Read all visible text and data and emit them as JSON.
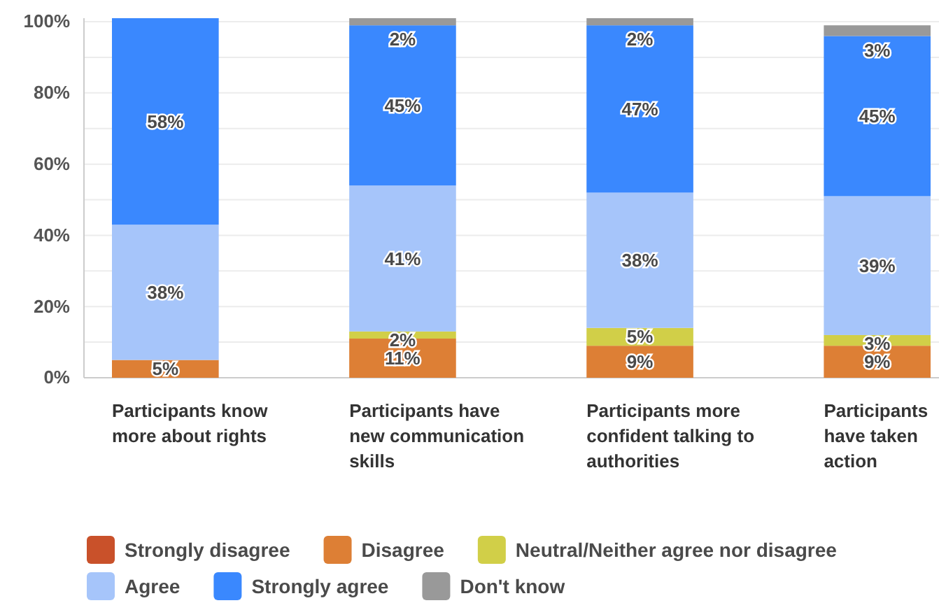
{
  "chart_data": {
    "type": "bar",
    "stacked": true,
    "categories": [
      "Participants know more about rights",
      "Participants have new communication skills",
      "Participants more confident talking to authorities",
      "Participants have taken action"
    ],
    "series": [
      {
        "name": "Strongly disagree",
        "color": "#c9512a",
        "values": [
          null,
          null,
          null,
          null
        ],
        "value_labels": [
          null,
          null,
          null,
          null
        ]
      },
      {
        "name": "Disagree",
        "color": "#dd7f35",
        "values": [
          5,
          11,
          9,
          9
        ],
        "value_labels": [
          "5%",
          "11%",
          "9%",
          "9%"
        ]
      },
      {
        "name": "Neutral/Neither agree nor disagree",
        "color": "#d1cf48",
        "values": [
          null,
          2,
          5,
          3
        ],
        "value_labels": [
          null,
          "2%",
          "5%",
          "3%"
        ]
      },
      {
        "name": "Agree",
        "color": "#a6c5fa",
        "values": [
          38,
          41,
          38,
          39
        ],
        "value_labels": [
          "38%",
          "41%",
          "38%",
          "39%"
        ]
      },
      {
        "name": "Strongly agree",
        "color": "#3a88fe",
        "values": [
          58,
          45,
          47,
          45
        ],
        "value_labels": [
          "58%",
          "45%",
          "47%",
          "45%"
        ]
      },
      {
        "name": "Don't know",
        "color": "#999999",
        "values": [
          null,
          2,
          2,
          3
        ],
        "value_labels": [
          null,
          "2%",
          "2%",
          "3%"
        ]
      }
    ],
    "ylim": [
      0,
      101
    ],
    "yticks": [
      {
        "value": 0,
        "label": "0%"
      },
      {
        "value": 10,
        "label": null
      },
      {
        "value": 20,
        "label": "20%"
      },
      {
        "value": 30,
        "label": null
      },
      {
        "value": 40,
        "label": "40%"
      },
      {
        "value": 50,
        "label": null
      },
      {
        "value": 60,
        "label": "60%"
      },
      {
        "value": 70,
        "label": null
      },
      {
        "value": 80,
        "label": "80%"
      },
      {
        "value": 90,
        "label": null
      },
      {
        "value": 100,
        "label": "100%"
      }
    ],
    "grid": true,
    "legend": "bottom"
  }
}
